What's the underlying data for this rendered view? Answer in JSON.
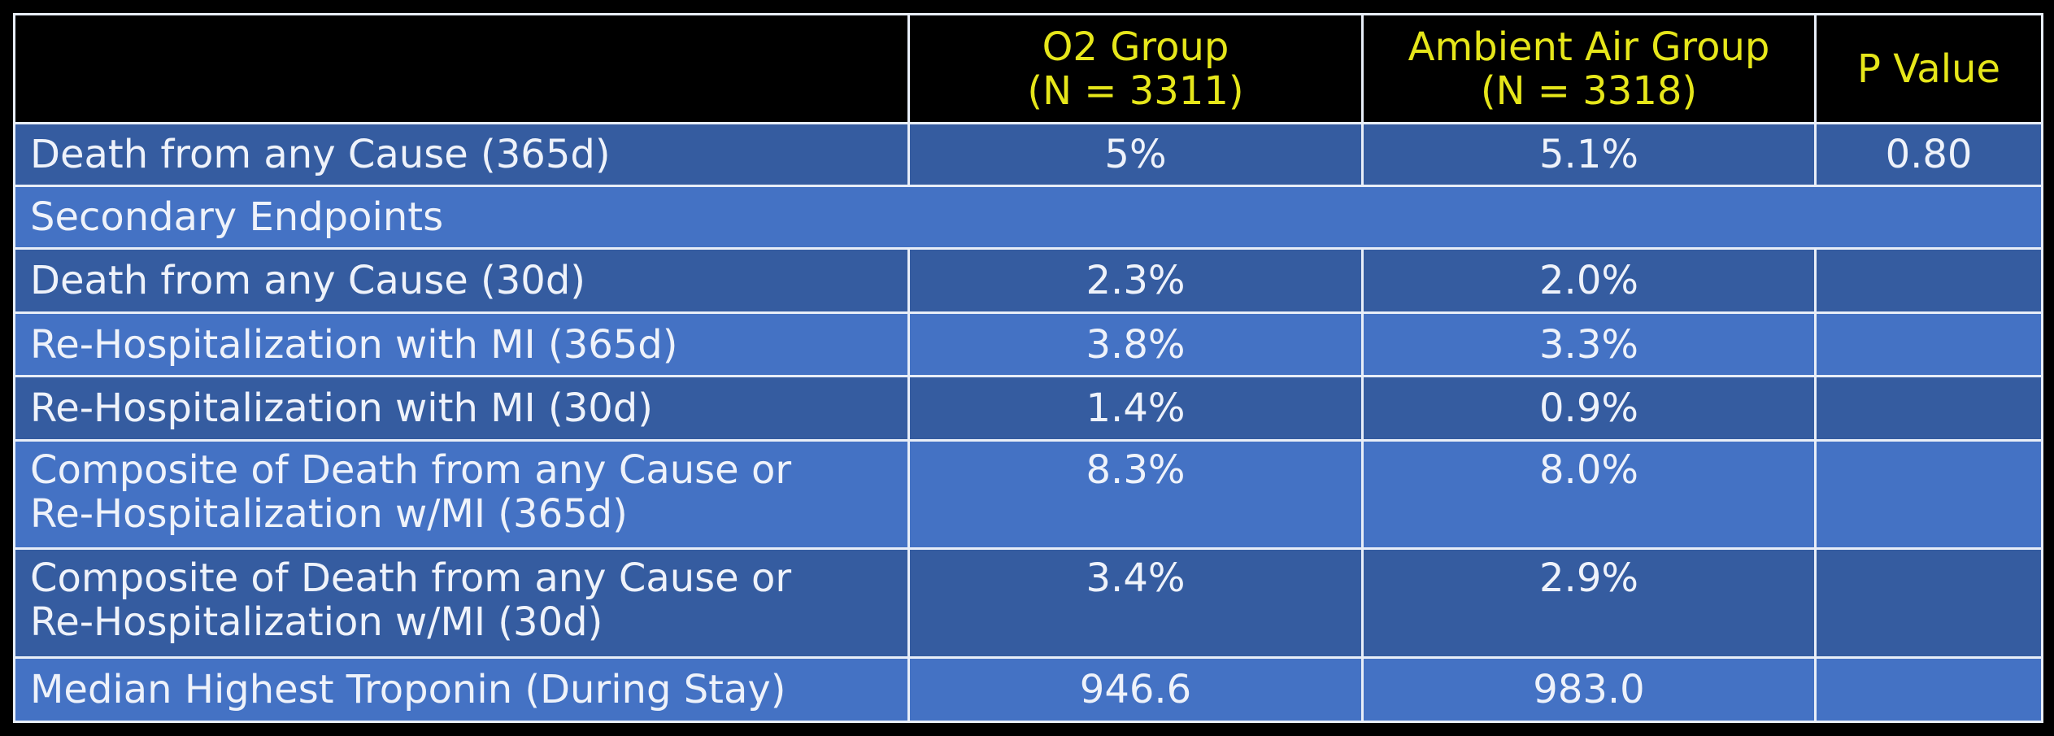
{
  "table": {
    "header": [
      {
        "lines": [
          "O2 Group",
          "(N = 3311)"
        ]
      },
      {
        "lines": [
          "Ambient Air Group",
          "(N = 3318)"
        ]
      },
      {
        "lines": [
          "P Value"
        ]
      }
    ],
    "rows": [
      {
        "label": [
          "Death from any Cause (365d)"
        ],
        "o2": "5%",
        "ambient": "5.1%",
        "p": "0.80"
      },
      {
        "section": "Secondary Endpoints"
      },
      {
        "label": [
          "Death from any Cause (30d)"
        ],
        "o2": "2.3%",
        "ambient": "2.0%"
      },
      {
        "label": [
          "Re-Hospitalization with MI (365d)"
        ],
        "o2": "3.8%",
        "ambient": "3.3%"
      },
      {
        "label": [
          "Re-Hospitalization with MI (30d)"
        ],
        "o2": "1.4%",
        "ambient": "0.9%"
      },
      {
        "label": [
          "Composite of Death from any Cause or",
          "Re-Hospitalization w/MI (365d)"
        ],
        "o2": "8.3%",
        "ambient": "8.0%"
      },
      {
        "label": [
          "Composite of Death from any Cause or",
          "Re-Hospitalization w/MI (30d)"
        ],
        "o2": "3.4%",
        "ambient": "2.9%"
      },
      {
        "label": [
          "Median Highest Troponin (During Stay)"
        ],
        "o2": "946.6",
        "ambient": "983.0"
      }
    ]
  }
}
